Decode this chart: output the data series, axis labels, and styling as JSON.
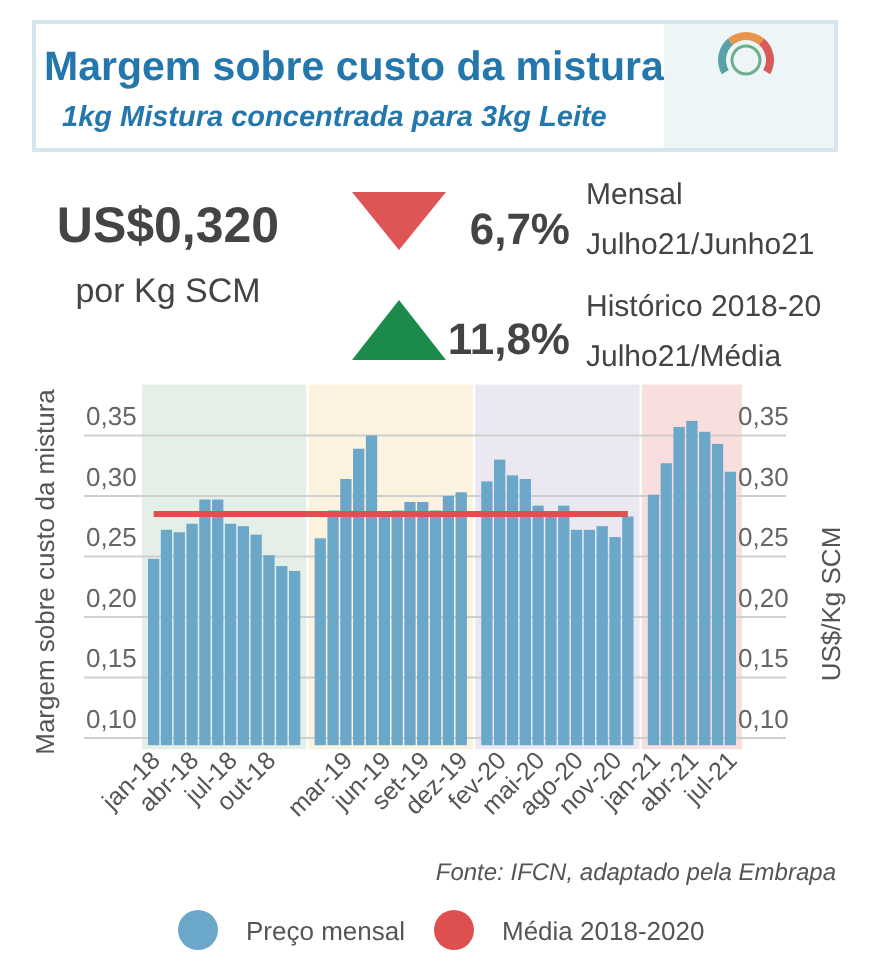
{
  "chart_data": {
    "type": "bar",
    "title": "Margem sobre custo da mistura",
    "subtitle": "1kg Mistura concentrada para 3kg Leite",
    "ylabel": "Margem sobre custo da mistura",
    "y2label": "US$/Kg SCM",
    "categories": [
      "jan-18",
      null,
      null,
      "abr-18",
      null,
      null,
      "jul-18",
      null,
      null,
      "out-18",
      null,
      null,
      null,
      null,
      null,
      "mar-19",
      null,
      null,
      "jun-19",
      null,
      null,
      "set-19",
      null,
      null,
      "dez-19",
      null,
      null,
      "fev-20",
      null,
      null,
      "mai-20",
      null,
      null,
      "ago-20",
      null,
      null,
      "nov-20",
      null,
      null,
      "jan-21",
      null,
      null,
      "abr-21",
      null,
      null,
      "jul-21"
    ],
    "series": [
      {
        "name": "Preço mensal",
        "color": "#6aa7c9",
        "values": [
          0.248,
          0.272,
          0.27,
          0.277,
          0.297,
          0.297,
          0.277,
          0.275,
          0.268,
          0.251,
          0.242,
          0.238,
          null,
          0.265,
          0.288,
          0.314,
          0.339,
          0.35,
          0.284,
          0.288,
          0.295,
          0.295,
          0.288,
          0.3,
          0.303,
          null,
          0.312,
          0.33,
          0.317,
          0.314,
          0.292,
          0.284,
          0.292,
          0.272,
          0.272,
          0.275,
          0.266,
          0.283,
          null,
          0.301,
          0.327,
          0.357,
          0.362,
          0.353,
          0.343,
          0.32
        ]
      },
      {
        "name": "Média 2018-2020",
        "type": "line",
        "color": "#de5050",
        "values": [
          0.285,
          0.285,
          0.285,
          0.285,
          0.285,
          0.285,
          0.285,
          0.285,
          0.285,
          0.285,
          0.285,
          0.285,
          0.285,
          0.285,
          0.285,
          0.285,
          0.285,
          0.285,
          0.285,
          0.285,
          0.285,
          0.285,
          0.285,
          0.285,
          0.285,
          0.285,
          0.285,
          0.285,
          0.285,
          0.285,
          0.285,
          0.285,
          0.285,
          0.285,
          0.285,
          0.285,
          0.285,
          0.285,
          null,
          null,
          null,
          null,
          null,
          null,
          null,
          null
        ]
      }
    ],
    "ylim": [
      0.094,
      0.392
    ],
    "yticks": [
      {
        "value": 0.1,
        "label": "0,10"
      },
      {
        "value": 0.15,
        "label": "0,15"
      },
      {
        "value": 0.2,
        "label": "0,20"
      },
      {
        "value": 0.25,
        "label": "0,25"
      },
      {
        "value": 0.3,
        "label": "0,30"
      },
      {
        "value": 0.35,
        "label": "0,35"
      }
    ],
    "y2lim": [
      0.094,
      0.392
    ],
    "y2ticks": [
      {
        "value": 0.1,
        "label": "0,10"
      },
      {
        "value": 0.15,
        "label": "0,15"
      },
      {
        "value": 0.2,
        "label": "0,20"
      },
      {
        "value": 0.25,
        "label": "0,25"
      },
      {
        "value": 0.3,
        "label": "0,30"
      },
      {
        "value": 0.35,
        "label": "0,35"
      }
    ],
    "grid": "y",
    "legend": "bottom",
    "annotations": [
      "US$0,320",
      "por Kg SCM",
      "6,7%",
      "Mensal",
      "Julho21/Junho21",
      "11,8%",
      "Histórico 2018-20",
      "Julho21/Média",
      "Fonte: IFCN, adaptado pela Embrapa"
    ]
  }
}
